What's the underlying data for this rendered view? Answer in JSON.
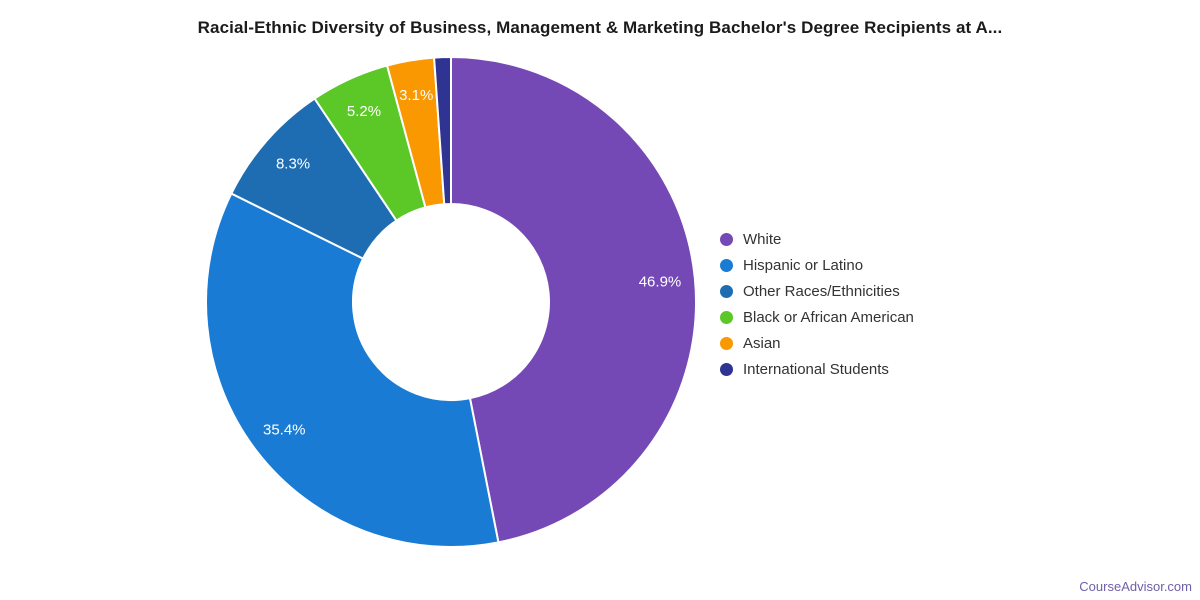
{
  "chart_data": {
    "type": "pie",
    "subtype": "donut",
    "title": "Racial-Ethnic Diversity of Business, Management & Marketing Bachelor's Degree Recipients at A...",
    "legend_position": "right",
    "direction": "clockwise",
    "start_angle_deg": 0,
    "inner_radius_ratio": 0.4,
    "background": "#ffffff",
    "slice_label_color": "#ffffff",
    "categories": [
      "White",
      "Hispanic or Latino",
      "Other Races/Ethnicities",
      "Black or African American",
      "Asian",
      "International Students"
    ],
    "values": [
      46.9,
      35.4,
      8.3,
      5.2,
      3.1,
      1.1
    ],
    "slice_labels": [
      "46.9%",
      "35.4%",
      "8.3%",
      "5.2%",
      "3.1%",
      ""
    ],
    "colors": [
      "#7448B5",
      "#1A7BD4",
      "#1E6DB2",
      "#5CC828",
      "#F99800",
      "#2F3493"
    ]
  },
  "footer": {
    "link_text": "CourseAdvisor.com",
    "link_color": "#6F5FA9"
  }
}
